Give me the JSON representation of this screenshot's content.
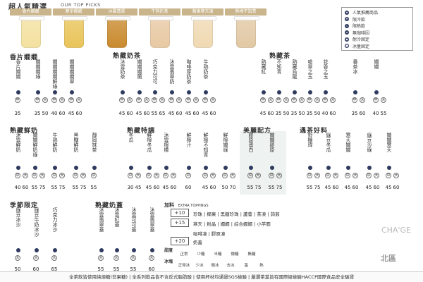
{
  "header": {
    "title": "超人氣精選",
    "subtitle": "OUR TOP PICKS"
  },
  "top_picks": [
    {
      "label": "香片嫺嫺",
      "color": "#f3e1a0"
    },
    {
      "label": "寒宇嫺嫺",
      "color": "#e9c45a"
    },
    {
      "label": "沐雲翡翠",
      "color": "#c98a2e"
    },
    {
      "label": "牛熟奶茶",
      "color": "#e8c9a3"
    },
    {
      "label": "蘋果寒天凍",
      "color": "#f0d9b2"
    },
    {
      "label": "熱棒不知青",
      "color": "#e2c8a4"
    }
  ],
  "legend": [
    {
      "label": "人氣推薦商品",
      "icon": "star",
      "color": "#2e3a5e"
    },
    {
      "label": "限冷飲",
      "icon": "cold",
      "color": "#2e3a5e"
    },
    {
      "label": "限熱飲",
      "icon": "hot",
      "color": "#2e3a5e"
    },
    {
      "label": "無咖啡因",
      "icon": "decaf",
      "color": "#2e3a5e"
    },
    {
      "label": "耐冷固定",
      "icon": "fixed",
      "color": "#2e3a5e"
    },
    {
      "label": "冰量固定",
      "icon": "ice",
      "color": "#2e3a5e"
    }
  ],
  "sections": {
    "s1": "香片嫺嫺",
    "s2": "熟藏奶茶",
    "s3": "熟藏茶",
    "s4": "熟藏鮮奶",
    "s5": "熟藏特調",
    "s6": "美麗配方",
    "s7": "遇茶好料",
    "s8": "季節限定",
    "s9": "熟藏奶蓋"
  },
  "row1": [
    {
      "name": "香片嫺嫺",
      "prices": [
        "35",
        ""
      ]
    },
    {
      "name": "嫺嫺嫺綠",
      "prices": [
        "35",
        "50"
      ]
    },
    {
      "name": "嫺嫺嫺嫺鮮綠",
      "prices": [
        "40",
        "60"
      ]
    },
    {
      "name": "嫺嫺嫺嫺翠",
      "prices": [
        "45",
        "60"
      ]
    },
    {
      "name": "沐雲奶茶",
      "prices": [
        "45",
        "60"
      ]
    },
    {
      "name": "嫺嫺嫺蘭",
      "prices": [
        "45",
        "60"
      ]
    },
    {
      "name": "巧克力可可",
      "prices": [
        "55",
        "65"
      ]
    },
    {
      "name": "沐雲翡翠奶",
      "prices": [
        "45",
        "60"
      ]
    },
    {
      "name": "咖啡厚奶茶",
      "prices": [
        "45",
        "60"
      ]
    },
    {
      "name": "牛熟奶茶",
      "prices": [
        "45",
        "60"
      ]
    },
    {
      "name": "熟藏紅",
      "prices": [
        "45",
        "60"
      ]
    },
    {
      "name": "不知青",
      "prices": [
        "35",
        "50"
      ]
    },
    {
      "name": "熟藏烏龍",
      "prices": [
        "35",
        "50"
      ]
    },
    {
      "name": "嗆翠之玉",
      "prices": [
        "35",
        "50"
      ]
    },
    {
      "name": "花香之玉",
      "prices": [
        "40",
        "60"
      ]
    },
    {
      "name": "番茶冰",
      "prices": [
        "35",
        "60"
      ]
    },
    {
      "name": "嫺嫺",
      "prices": [
        "40",
        "55"
      ]
    }
  ],
  "row2": [
    {
      "name": "沐雲鮮奶",
      "prices": [
        "40",
        "60"
      ]
    },
    {
      "name": "嫺嫺鮮奶綠",
      "prices": [
        "55",
        "75"
      ]
    },
    {
      "name": "牛熟鮮奶",
      "prices": [
        "55",
        "75"
      ]
    },
    {
      "name": "黑糖鮮奶",
      "prices": [
        "55",
        "75"
      ]
    },
    {
      "name": "靜岡抹茶",
      "prices": [
        "55",
        ""
      ]
    },
    {
      "name": "冬瓜",
      "prices": [
        "30",
        "45"
      ]
    },
    {
      "name": "鮮檸冬瓜",
      "prices": [
        "45",
        "60"
      ]
    },
    {
      "name": "沐雲檸檬",
      "prices": [
        "45",
        "60"
      ]
    },
    {
      "name": "鮮檸汁",
      "prices": [
        "60",
        ""
      ]
    },
    {
      "name": "鮮檸不知青",
      "prices": [
        "45",
        "60"
      ]
    },
    {
      "name": "鮮檸嫺綠",
      "prices": [
        "50",
        "70"
      ]
    },
    {
      "name": "膠原蛋白",
      "prices": [
        "55",
        "75"
      ]
    },
    {
      "name": "嫺嫺膠原",
      "prices": [
        "55",
        "75"
      ]
    },
    {
      "name": "鈴棚瑋",
      "prices": [
        "55",
        "75"
      ]
    },
    {
      "name": "綠豆冬瓜",
      "prices": [
        "45",
        "60"
      ]
    },
    {
      "name": "寒天嫺嫺",
      "prices": [
        "45",
        "60"
      ]
    },
    {
      "name": "綠豆沙綠",
      "prices": [
        "45",
        "60"
      ]
    },
    {
      "name": "嫺嫺寒天",
      "prices": [
        "45",
        "60"
      ]
    }
  ],
  "row3": [
    {
      "name": "綠豆冰沙",
      "prices": [
        "50",
        ""
      ]
    },
    {
      "name": "綠豆牛奶冰沙",
      "prices": [
        "60",
        ""
      ]
    },
    {
      "name": "巧克力冰沙",
      "prices": [
        "65",
        ""
      ]
    },
    {
      "name": "沐雲翡翠蓋",
      "prices": [
        "55",
        ""
      ]
    },
    {
      "name": "沐雲紅蓋",
      "prices": [
        "55",
        ""
      ]
    },
    {
      "name": "沐雲可可蓋",
      "prices": [
        "55",
        ""
      ]
    },
    {
      "name": "沐雲翡翠蓋",
      "prices": [
        "60",
        ""
      ]
    }
  ],
  "toppings": {
    "title": "加料",
    "subtitle": "EXTRA TOPPINGS",
    "groups": [
      {
        "plus": "+10",
        "items": "珍珠 | 椰果 | 黑糖珍珠 | 蘆薈 | 茶凍 | 蒟蒻"
      },
      {
        "plus": "+15",
        "items": "寒天 | 粉晶 | 嫺嫺 | 綜合嫺嫺 | 小芋圓"
      },
      {
        "plus": "",
        "items": "咖啡凍 | 膠原凍"
      },
      {
        "plus": "+20",
        "items": "奶蓋"
      }
    ]
  },
  "adjust": {
    "sugar_label": "甜度",
    "sugar": [
      "正常",
      "少糖",
      "半糖",
      "微糖",
      "無糖"
    ],
    "ice_label": "冰塊",
    "ice": [
      "正常冰",
      "少冰",
      "微冰",
      "去冰",
      "溫",
      "熱"
    ]
  },
  "brand": "CHA'GE",
  "region": "北區",
  "footer": "全茶飲皆使用純煉糖(非果糖) | 全系列飲品皆不含反式脂肪酸 | 使用杯材均通過SGS檢驗 | 嚴選茶葉皆有國際級檢驗HACCP國際食品安全驗證"
}
